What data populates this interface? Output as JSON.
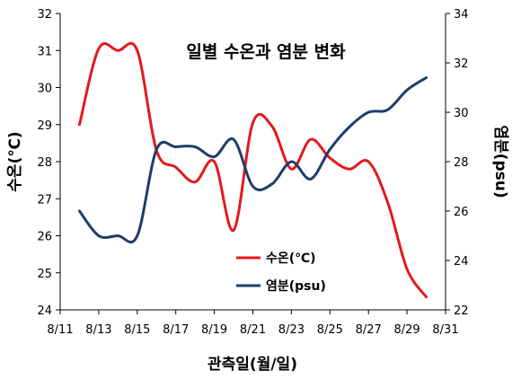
{
  "chart_data": {
    "type": "line",
    "title": "일별 수온과 염분 변화",
    "xlabel": "관측일(월/일)",
    "ylabel_left": "수온(℃)",
    "ylabel_right": "염분(psu)",
    "x_ticks": [
      "8/11",
      "8/13",
      "8/15",
      "8/17",
      "8/19",
      "8/21",
      "8/23",
      "8/25",
      "8/27",
      "8/29",
      "8/31"
    ],
    "xlim": [
      11,
      31
    ],
    "ylim_left": [
      24,
      32
    ],
    "ylim_right": [
      22,
      34
    ],
    "y_ticks_left": [
      "24",
      "25",
      "26",
      "27",
      "28",
      "29",
      "30",
      "31",
      "32"
    ],
    "y_ticks_right": [
      "22",
      "24",
      "26",
      "28",
      "30",
      "32",
      "34"
    ],
    "grid": false,
    "legend_position": "center-right",
    "series": [
      {
        "name": "수온(℃)",
        "axis": "left",
        "color": "#e31a1c",
        "x": [
          12,
          13,
          14,
          15,
          16,
          17,
          18,
          19,
          20,
          21,
          22,
          23,
          24,
          25,
          26,
          27,
          28,
          29,
          30
        ],
        "y": [
          29.0,
          31.05,
          31.0,
          31.0,
          28.3,
          27.85,
          27.45,
          28.0,
          26.15,
          29.05,
          28.95,
          27.8,
          28.6,
          28.1,
          27.8,
          28.0,
          26.9,
          25.1,
          24.35
        ]
      },
      {
        "name": "염분(psu)",
        "axis": "right",
        "color": "#1f3c6d",
        "x": [
          12,
          13,
          14,
          15,
          16,
          17,
          18,
          19,
          20,
          21,
          22,
          23,
          24,
          25,
          26,
          27,
          28,
          29,
          30
        ],
        "y": [
          26.0,
          25.0,
          25.0,
          25.0,
          28.5,
          28.6,
          28.6,
          28.2,
          28.9,
          27.0,
          27.1,
          28.0,
          27.3,
          28.5,
          29.4,
          30.0,
          30.1,
          30.9,
          31.4
        ]
      }
    ]
  }
}
